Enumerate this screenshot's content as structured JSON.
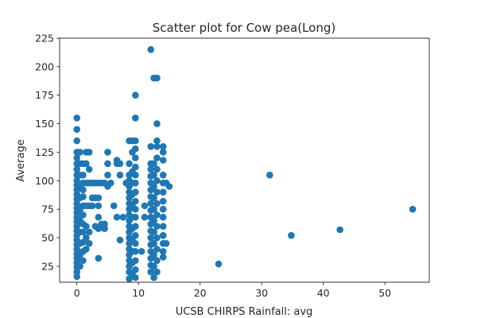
{
  "chart_data": {
    "type": "scatter",
    "title": "Scatter plot for Cow pea(Long)",
    "xlabel": "UCSB CHIRPS Rainfall: avg",
    "ylabel": "Average",
    "xlim": [
      -2.8,
      57.2
    ],
    "ylim": [
      11,
      225
    ],
    "xticks": [
      0,
      10,
      20,
      30,
      40,
      50
    ],
    "yticks": [
      25,
      50,
      75,
      100,
      125,
      150,
      175,
      200,
      225
    ],
    "grid": false,
    "marker_color": "#1f77b4",
    "series": [
      {
        "points": [
          [
            0,
            16
          ],
          [
            0,
            20
          ],
          [
            0,
            24
          ],
          [
            0,
            28
          ],
          [
            0,
            32
          ],
          [
            0,
            36
          ],
          [
            0,
            40
          ],
          [
            0,
            44
          ],
          [
            0,
            48
          ],
          [
            0,
            52
          ],
          [
            0,
            56
          ],
          [
            0,
            60
          ],
          [
            0,
            64
          ],
          [
            0,
            68
          ],
          [
            0,
            72
          ],
          [
            0,
            76
          ],
          [
            0,
            80
          ],
          [
            0,
            84
          ],
          [
            0,
            88
          ],
          [
            0,
            92
          ],
          [
            0,
            96
          ],
          [
            0,
            100
          ],
          [
            0,
            105
          ],
          [
            0,
            110
          ],
          [
            0,
            115
          ],
          [
            0,
            120
          ],
          [
            0,
            125
          ],
          [
            0,
            135
          ],
          [
            0,
            145
          ],
          [
            0,
            155
          ],
          [
            0.5,
            25
          ],
          [
            0.5,
            35
          ],
          [
            0.5,
            45
          ],
          [
            0.5,
            55
          ],
          [
            0.5,
            65
          ],
          [
            0.5,
            75
          ],
          [
            0.5,
            85
          ],
          [
            0.5,
            95
          ],
          [
            0.5,
            105
          ],
          [
            0.5,
            115
          ],
          [
            0.5,
            125
          ],
          [
            1,
            30
          ],
          [
            1,
            38
          ],
          [
            1,
            46
          ],
          [
            1,
            55
          ],
          [
            1,
            62
          ],
          [
            1,
            70
          ],
          [
            1,
            78
          ],
          [
            1,
            86
          ],
          [
            1,
            92
          ],
          [
            1,
            98
          ],
          [
            1,
            105
          ],
          [
            1,
            115
          ],
          [
            1.5,
            40
          ],
          [
            1.5,
            50
          ],
          [
            1.5,
            60
          ],
          [
            1.5,
            78
          ],
          [
            1.5,
            98
          ],
          [
            1.5,
            115
          ],
          [
            1.5,
            125
          ],
          [
            2,
            45
          ],
          [
            2,
            55
          ],
          [
            2,
            78
          ],
          [
            2,
            98
          ],
          [
            2,
            110
          ],
          [
            2,
            125
          ],
          [
            2.5,
            78
          ],
          [
            2.5,
            85
          ],
          [
            2.5,
            98
          ],
          [
            3,
            60
          ],
          [
            3,
            98
          ],
          [
            3,
            85
          ],
          [
            3.5,
            32
          ],
          [
            3.5,
            58
          ],
          [
            3.5,
            68
          ],
          [
            3.5,
            78
          ],
          [
            3.5,
            85
          ],
          [
            3.5,
            98
          ],
          [
            4,
            62
          ],
          [
            4,
            98
          ],
          [
            4.5,
            58
          ],
          [
            4.5,
            62
          ],
          [
            4.5,
            98
          ],
          [
            5,
            95
          ],
          [
            5,
            105
          ],
          [
            5,
            115
          ],
          [
            5,
            125
          ],
          [
            5.5,
            98
          ],
          [
            6,
            78
          ],
          [
            6.5,
            68
          ],
          [
            6.5,
            115
          ],
          [
            6.5,
            118
          ],
          [
            7,
            48
          ],
          [
            7,
            105
          ],
          [
            7,
            115
          ],
          [
            7.5,
            68
          ],
          [
            8,
            98
          ],
          [
            8.5,
            14
          ],
          [
            8.5,
            20
          ],
          [
            8.5,
            25
          ],
          [
            8.5,
            30
          ],
          [
            8.5,
            35
          ],
          [
            8.5,
            40
          ],
          [
            8.5,
            45
          ],
          [
            8.5,
            50
          ],
          [
            8.5,
            55
          ],
          [
            8.5,
            60
          ],
          [
            8.5,
            65
          ],
          [
            8.5,
            70
          ],
          [
            8.5,
            75
          ],
          [
            8.5,
            80
          ],
          [
            8.5,
            85
          ],
          [
            8.5,
            90
          ],
          [
            8.5,
            95
          ],
          [
            8.5,
            100
          ],
          [
            8.5,
            105
          ],
          [
            8.5,
            115
          ],
          [
            8.5,
            135
          ],
          [
            9,
            18
          ],
          [
            9,
            28
          ],
          [
            9,
            38
          ],
          [
            9,
            48
          ],
          [
            9,
            58
          ],
          [
            9,
            68
          ],
          [
            9,
            78
          ],
          [
            9,
            88
          ],
          [
            9,
            98
          ],
          [
            9,
            108
          ],
          [
            9,
            125
          ],
          [
            9,
            135
          ],
          [
            9.5,
            15
          ],
          [
            9.5,
            22
          ],
          [
            9.5,
            30
          ],
          [
            9.5,
            38
          ],
          [
            9.5,
            45
          ],
          [
            9.5,
            52
          ],
          [
            9.5,
            60
          ],
          [
            9.5,
            68
          ],
          [
            9.5,
            75
          ],
          [
            9.5,
            82
          ],
          [
            9.5,
            90
          ],
          [
            9.5,
            98
          ],
          [
            9.5,
            105
          ],
          [
            9.5,
            112
          ],
          [
            9.5,
            120
          ],
          [
            9.5,
            128
          ],
          [
            9.5,
            135
          ],
          [
            9.5,
            155
          ],
          [
            9.5,
            175
          ],
          [
            10.5,
            38
          ],
          [
            11,
            68
          ],
          [
            11,
            78
          ],
          [
            12,
            20
          ],
          [
            12,
            26
          ],
          [
            12,
            32
          ],
          [
            12,
            38
          ],
          [
            12,
            44
          ],
          [
            12,
            50
          ],
          [
            12,
            56
          ],
          [
            12,
            62
          ],
          [
            12,
            68
          ],
          [
            12,
            74
          ],
          [
            12,
            80
          ],
          [
            12,
            86
          ],
          [
            12,
            92
          ],
          [
            12,
            98
          ],
          [
            12,
            104
          ],
          [
            12,
            110
          ],
          [
            12,
            115
          ],
          [
            12,
            130
          ],
          [
            12,
            215
          ],
          [
            12.5,
            15
          ],
          [
            12.5,
            25
          ],
          [
            12.5,
            35
          ],
          [
            12.5,
            45
          ],
          [
            12.5,
            55
          ],
          [
            12.5,
            65
          ],
          [
            12.5,
            75
          ],
          [
            12.5,
            85
          ],
          [
            12.5,
            95
          ],
          [
            12.5,
            105
          ],
          [
            12.5,
            115
          ],
          [
            12.5,
            190
          ],
          [
            13,
            20
          ],
          [
            13,
            30
          ],
          [
            13,
            40
          ],
          [
            13,
            50
          ],
          [
            13,
            60
          ],
          [
            13,
            70
          ],
          [
            13,
            80
          ],
          [
            13,
            90
          ],
          [
            13,
            100
          ],
          [
            13,
            110
          ],
          [
            13,
            120
          ],
          [
            13,
            130
          ],
          [
            13,
            135
          ],
          [
            13,
            150
          ],
          [
            13,
            190
          ],
          [
            14,
            33
          ],
          [
            14,
            38
          ],
          [
            14,
            45
          ],
          [
            14,
            52
          ],
          [
            14,
            60
          ],
          [
            14,
            68
          ],
          [
            14,
            75
          ],
          [
            14,
            82
          ],
          [
            14,
            90
          ],
          [
            14,
            98
          ],
          [
            14,
            105
          ],
          [
            14,
            118
          ],
          [
            14,
            125
          ],
          [
            14,
            130
          ],
          [
            14.5,
            45
          ],
          [
            14.5,
            98
          ],
          [
            15,
            95
          ],
          [
            23,
            27
          ],
          [
            31.3,
            105
          ],
          [
            34.8,
            52
          ],
          [
            42.7,
            57
          ],
          [
            54.5,
            75
          ]
        ]
      }
    ]
  }
}
